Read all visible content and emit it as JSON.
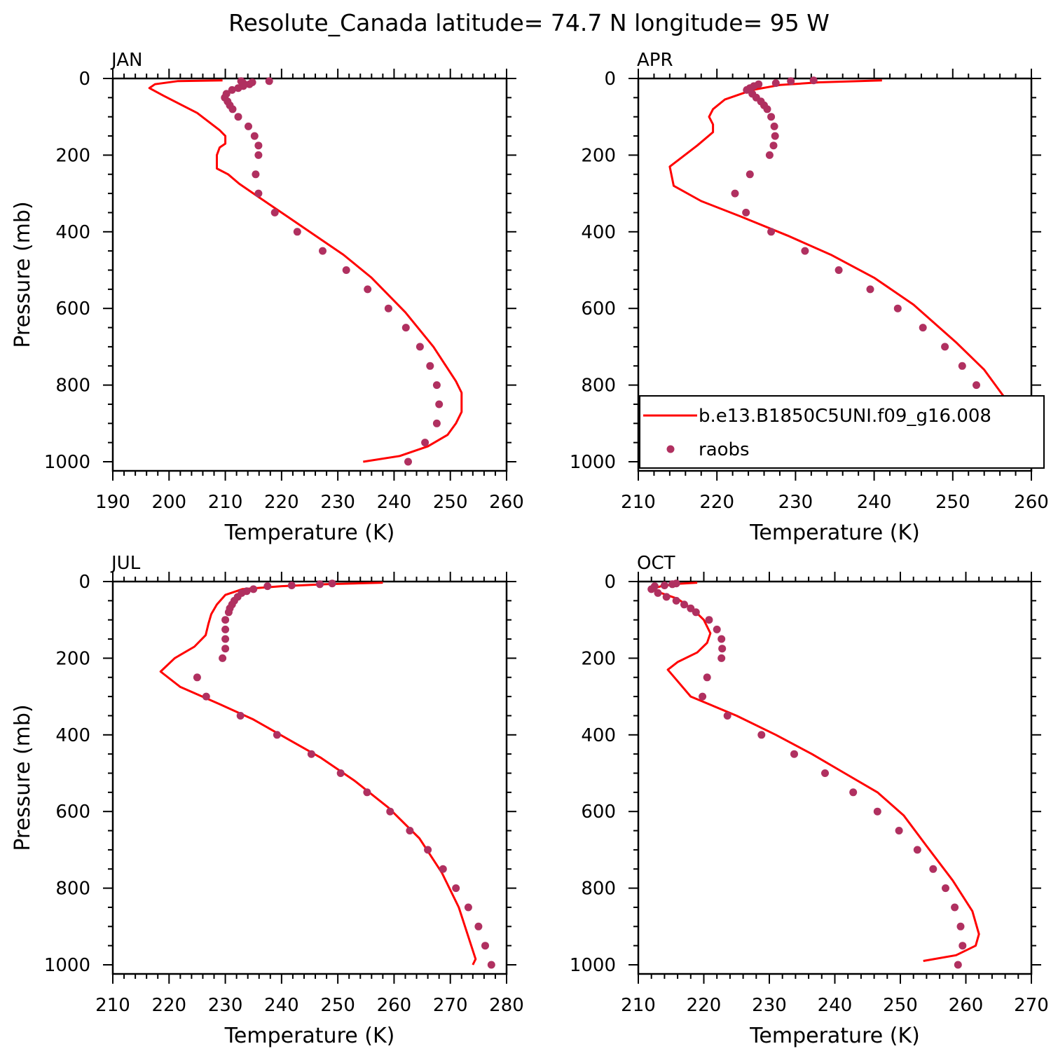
{
  "title": "Resolute_Canada  latitude= 74.7 N longitude= 95 W",
  "legend": {
    "model_label": "b.e13.B1850C5UNI.f09_g16.008",
    "obs_label": "raobs"
  },
  "colors": {
    "model": "#ff0000",
    "obs": "#b03060"
  },
  "chart_data": [
    {
      "type": "line",
      "panel": "JAN",
      "xlabel": "Temperature (K)",
      "ylabel": "Pressure (mb)",
      "xlim": [
        190,
        260
      ],
      "ylim": [
        0,
        1000
      ],
      "y_inverted": true,
      "xticks": [
        190,
        200,
        210,
        220,
        230,
        240,
        250,
        260
      ],
      "yticks": [
        0,
        200,
        400,
        600,
        800,
        1000
      ],
      "series": [
        {
          "name": "b.e13.B1850C5UNI.f09_g16.008",
          "kind": "line",
          "points": [
            [
              209.5,
              5
            ],
            [
              201.5,
              7
            ],
            [
              197.5,
              15
            ],
            [
              196.5,
              25
            ],
            [
              199,
              45
            ],
            [
              205,
              90
            ],
            [
              209,
              135
            ],
            [
              210,
              150
            ],
            [
              210,
              170
            ],
            [
              209,
              180
            ],
            [
              208.5,
              200
            ],
            [
              208.5,
              235
            ],
            [
              210.5,
              250
            ],
            [
              212.5,
              275
            ],
            [
              216,
              310
            ],
            [
              221,
              360
            ],
            [
              226,
              410
            ],
            [
              231,
              460
            ],
            [
              236,
              520
            ],
            [
              242,
              610
            ],
            [
              247,
              700
            ],
            [
              251,
              790
            ],
            [
              252,
              820
            ],
            [
              252,
              870
            ],
            [
              251,
              900
            ],
            [
              249.5,
              930
            ],
            [
              246,
              960
            ],
            [
              241,
              985
            ],
            [
              234.5,
              1000
            ]
          ]
        },
        {
          "name": "raobs",
          "kind": "scatter",
          "points": [
            [
              217.8,
              7
            ],
            [
              214.8,
              10
            ],
            [
              213.2,
              12
            ],
            [
              212.8,
              7
            ],
            [
              214.3,
              15
            ],
            [
              213.2,
              20
            ],
            [
              212.3,
              25
            ],
            [
              211.2,
              30
            ],
            [
              210.2,
              40
            ],
            [
              209.9,
              50
            ],
            [
              210.4,
              60
            ],
            [
              210.8,
              70
            ],
            [
              211.3,
              80
            ],
            [
              212.3,
              100
            ],
            [
              214.1,
              125
            ],
            [
              215.2,
              150
            ],
            [
              215.9,
              175
            ],
            [
              215.9,
              200
            ],
            [
              215.4,
              250
            ],
            [
              215.9,
              300
            ],
            [
              218.8,
              350
            ],
            [
              222.8,
              400
            ],
            [
              227.3,
              450
            ],
            [
              231.5,
              500
            ],
            [
              235.3,
              550
            ],
            [
              239.0,
              600
            ],
            [
              242.1,
              650
            ],
            [
              244.6,
              700
            ],
            [
              246.4,
              750
            ],
            [
              247.6,
              800
            ],
            [
              248.0,
              850
            ],
            [
              247.6,
              900
            ],
            [
              245.5,
              950
            ],
            [
              242.5,
              1000
            ]
          ]
        }
      ]
    },
    {
      "type": "line",
      "panel": "APR",
      "xlabel": "Temperature (K)",
      "ylabel": "",
      "xlim": [
        210,
        260
      ],
      "ylim": [
        0,
        1000
      ],
      "y_inverted": true,
      "xticks": [
        210,
        220,
        230,
        240,
        250,
        260
      ],
      "yticks": [
        0,
        200,
        400,
        600,
        800,
        1000
      ],
      "legend_position": "inside-bottom",
      "series": [
        {
          "name": "b.e13.B1850C5UNI.f09_g16.008",
          "kind": "line",
          "points": [
            [
              241,
              5
            ],
            [
              233,
              10
            ],
            [
              228,
              17
            ],
            [
              224.5,
              30
            ],
            [
              221,
              55
            ],
            [
              219.5,
              80
            ],
            [
              219,
              100
            ],
            [
              219.5,
              120
            ],
            [
              219.5,
              140
            ],
            [
              217.5,
              175
            ],
            [
              214,
              230
            ],
            [
              214.5,
              280
            ],
            [
              218,
              320
            ],
            [
              223,
              360
            ],
            [
              229,
              410
            ],
            [
              234.5,
              460
            ],
            [
              240,
              520
            ],
            [
              245,
              590
            ],
            [
              250.5,
              690
            ],
            [
              254,
              760
            ],
            [
              256.5,
              830
            ],
            [
              257,
              880
            ],
            [
              256.8,
              920
            ],
            [
              255.5,
              950
            ],
            [
              253,
              970
            ],
            [
              248.5,
              990
            ]
          ]
        },
        {
          "name": "raobs",
          "kind": "scatter",
          "points": [
            [
              232.3,
              5
            ],
            [
              229.4,
              7
            ],
            [
              227.5,
              12
            ],
            [
              225.3,
              15
            ],
            [
              224.7,
              20
            ],
            [
              224.2,
              25
            ],
            [
              223.8,
              30
            ],
            [
              224.5,
              40
            ],
            [
              225.0,
              50
            ],
            [
              225.6,
              60
            ],
            [
              226.0,
              70
            ],
            [
              226.4,
              80
            ],
            [
              226.9,
              100
            ],
            [
              227.3,
              125
            ],
            [
              227.4,
              150
            ],
            [
              227.2,
              175
            ],
            [
              226.7,
              200
            ],
            [
              224.2,
              250
            ],
            [
              222.3,
              300
            ],
            [
              223.7,
              350
            ],
            [
              226.9,
              400
            ],
            [
              231.2,
              450
            ],
            [
              235.5,
              500
            ],
            [
              239.5,
              550
            ],
            [
              243.0,
              600
            ],
            [
              246.2,
              650
            ],
            [
              249.0,
              700
            ],
            [
              251.2,
              750
            ],
            [
              253.0,
              800
            ],
            [
              253.8,
              850
            ],
            [
              254.2,
              900
            ],
            [
              253.2,
              950
            ],
            [
              251.1,
              1000
            ]
          ]
        }
      ]
    },
    {
      "type": "line",
      "panel": "JUL",
      "xlabel": "Temperature (K)",
      "ylabel": "Pressure (mb)",
      "xlim": [
        210,
        280
      ],
      "ylim": [
        0,
        1000
      ],
      "y_inverted": true,
      "xticks": [
        210,
        220,
        230,
        240,
        250,
        260,
        270,
        280
      ],
      "yticks": [
        0,
        200,
        400,
        600,
        800,
        1000
      ],
      "series": [
        {
          "name": "b.e13.B1850C5UNI.f09_g16.008",
          "kind": "line",
          "points": [
            [
              258,
              3
            ],
            [
              248,
              7
            ],
            [
              240,
              12
            ],
            [
              233,
              20
            ],
            [
              230,
              35
            ],
            [
              228.5,
              60
            ],
            [
              227.5,
              85
            ],
            [
              227,
              110
            ],
            [
              226.5,
              140
            ],
            [
              224.5,
              170
            ],
            [
              221,
              200
            ],
            [
              218.5,
              235
            ],
            [
              222,
              275
            ],
            [
              229,
              320
            ],
            [
              235,
              360
            ],
            [
              241,
              410
            ],
            [
              247,
              460
            ],
            [
              253,
              520
            ],
            [
              259,
              590
            ],
            [
              264.5,
              670
            ],
            [
              268.5,
              760
            ],
            [
              271.5,
              850
            ],
            [
              273.5,
              940
            ],
            [
              274.5,
              985
            ],
            [
              274,
              1000
            ]
          ]
        },
        {
          "name": "raobs",
          "kind": "scatter",
          "points": [
            [
              249.0,
              5
            ],
            [
              246.8,
              7
            ],
            [
              241.8,
              10
            ],
            [
              237.5,
              12
            ],
            [
              235.0,
              20
            ],
            [
              233.8,
              25
            ],
            [
              232.9,
              30
            ],
            [
              232.2,
              40
            ],
            [
              231.6,
              50
            ],
            [
              231.2,
              60
            ],
            [
              230.8,
              70
            ],
            [
              230.6,
              80
            ],
            [
              230.0,
              100
            ],
            [
              230.0,
              125
            ],
            [
              230.0,
              150
            ],
            [
              230.0,
              175
            ],
            [
              229.5,
              200
            ],
            [
              225.0,
              250
            ],
            [
              226.6,
              300
            ],
            [
              232.7,
              350
            ],
            [
              239.2,
              400
            ],
            [
              245.3,
              450
            ],
            [
              250.5,
              500
            ],
            [
              255.2,
              550
            ],
            [
              259.3,
              600
            ],
            [
              262.8,
              650
            ],
            [
              266.0,
              700
            ],
            [
              268.7,
              750
            ],
            [
              271.0,
              800
            ],
            [
              273.2,
              850
            ],
            [
              275.0,
              900
            ],
            [
              276.2,
              950
            ],
            [
              277.3,
              1000
            ]
          ]
        }
      ]
    },
    {
      "type": "line",
      "panel": "OCT",
      "xlabel": "Temperature (K)",
      "ylabel": "",
      "xlim": [
        210,
        270
      ],
      "ylim": [
        0,
        1000
      ],
      "y_inverted": true,
      "xticks": [
        210,
        220,
        230,
        240,
        250,
        260,
        270
      ],
      "yticks": [
        0,
        200,
        400,
        600,
        800,
        1000
      ],
      "series": [
        {
          "name": "b.e13.B1850C5UNI.f09_g16.008",
          "kind": "line",
          "points": [
            [
              219,
              3
            ],
            [
              216,
              6
            ],
            [
              213.5,
              12
            ],
            [
              212,
              20
            ],
            [
              213.5,
              30
            ],
            [
              216,
              45
            ],
            [
              218.5,
              75
            ],
            [
              220,
              100
            ],
            [
              221,
              135
            ],
            [
              220.5,
              160
            ],
            [
              219,
              185
            ],
            [
              216,
              210
            ],
            [
              214.5,
              230
            ],
            [
              216,
              260
            ],
            [
              218,
              300
            ],
            [
              225,
              350
            ],
            [
              231,
              400
            ],
            [
              236.5,
              450
            ],
            [
              241.5,
              500
            ],
            [
              246.5,
              550
            ],
            [
              250.5,
              610
            ],
            [
              254,
              690
            ],
            [
              258,
              780
            ],
            [
              261,
              860
            ],
            [
              262,
              920
            ],
            [
              261.5,
              950
            ],
            [
              258.5,
              975
            ],
            [
              253.5,
              990
            ]
          ]
        },
        {
          "name": "raobs",
          "kind": "scatter",
          "points": [
            [
              215.8,
              5
            ],
            [
              215.2,
              7
            ],
            [
              214.0,
              10
            ],
            [
              212.5,
              12
            ],
            [
              212.0,
              20
            ],
            [
              213.0,
              30
            ],
            [
              214.3,
              40
            ],
            [
              215.8,
              50
            ],
            [
              217.0,
              60
            ],
            [
              218.0,
              70
            ],
            [
              218.8,
              80
            ],
            [
              220.8,
              100
            ],
            [
              222.0,
              125
            ],
            [
              222.7,
              150
            ],
            [
              222.8,
              175
            ],
            [
              222.7,
              200
            ],
            [
              220.5,
              250
            ],
            [
              219.8,
              300
            ],
            [
              223.6,
              350
            ],
            [
              228.8,
              400
            ],
            [
              233.8,
              450
            ],
            [
              238.5,
              500
            ],
            [
              242.8,
              550
            ],
            [
              246.5,
              600
            ],
            [
              249.8,
              650
            ],
            [
              252.6,
              700
            ],
            [
              255.0,
              750
            ],
            [
              256.9,
              800
            ],
            [
              258.3,
              850
            ],
            [
              259.2,
              900
            ],
            [
              259.5,
              950
            ],
            [
              258.8,
              1000
            ]
          ]
        }
      ]
    }
  ]
}
